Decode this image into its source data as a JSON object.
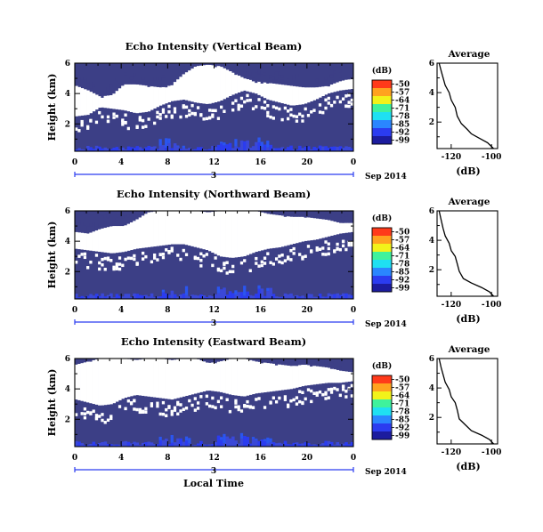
{
  "chart_data": [
    {
      "type": "heatmap",
      "title": "Echo Intensity (Vertical Beam)",
      "ylabel": "Height (km)",
      "x_ticks": [
        "0",
        "4",
        "8",
        "12",
        "16",
        "20",
        "0"
      ],
      "y_ticks": [
        "6",
        "4",
        "2"
      ],
      "day_label": "3",
      "date_label": "Sep 2014",
      "xlabel": "",
      "colorbar": {
        "unit": "(dB)",
        "levels": [
          "-50",
          "-57",
          "-64",
          "-71",
          "-78",
          "-85",
          "-92",
          "-99"
        ]
      },
      "average": {
        "title": "Average",
        "xlabel": "(dB)",
        "x_ticks": [
          "-120",
          "-100"
        ],
        "y_ticks": [
          "6",
          "4",
          "2"
        ],
        "xlim": [
          -127,
          -97
        ],
        "ylim": [
          0.2,
          6.0
        ],
        "profile": [
          [
            -99,
            0.2
          ],
          [
            -102,
            0.6
          ],
          [
            -106,
            0.9
          ],
          [
            -110,
            1.2
          ],
          [
            -112,
            1.5
          ],
          [
            -115,
            1.9
          ],
          [
            -117,
            2.4
          ],
          [
            -118,
            3.0
          ],
          [
            -120,
            3.5
          ],
          [
            -121,
            4.0
          ],
          [
            -123,
            4.5
          ],
          [
            -124,
            5.0
          ],
          [
            -125,
            5.5
          ],
          [
            -126,
            6.0
          ]
        ]
      }
    },
    {
      "type": "heatmap",
      "title": "Echo Intensity (Northward Beam)",
      "ylabel": "Height (km)",
      "x_ticks": [
        "0",
        "4",
        "8",
        "12",
        "16",
        "20",
        "0"
      ],
      "y_ticks": [
        "6",
        "4",
        "2"
      ],
      "day_label": "3",
      "date_label": "Sep 2014",
      "xlabel": "",
      "colorbar": {
        "unit": "(dB)",
        "levels": [
          "-50",
          "-57",
          "-64",
          "-71",
          "-78",
          "-85",
          "-92",
          "-99"
        ]
      },
      "average": {
        "title": "Average",
        "xlabel": "(dB)",
        "x_ticks": [
          "-120",
          "-100"
        ],
        "y_ticks": [
          "6",
          "4",
          "2"
        ],
        "xlim": [
          -127,
          -97
        ],
        "ylim": [
          0.2,
          6.0
        ],
        "profile": [
          [
            -99,
            0.2
          ],
          [
            -101,
            0.5
          ],
          [
            -105,
            0.8
          ],
          [
            -110,
            1.1
          ],
          [
            -114,
            1.4
          ],
          [
            -116,
            1.9
          ],
          [
            -117,
            2.4
          ],
          [
            -118,
            2.9
          ],
          [
            -120,
            3.3
          ],
          [
            -121,
            3.8
          ],
          [
            -123,
            4.3
          ],
          [
            -124,
            4.8
          ],
          [
            -125,
            5.4
          ],
          [
            -126,
            6.0
          ]
        ]
      }
    },
    {
      "type": "heatmap",
      "title": "Echo Intensity (Eastward Beam)",
      "ylabel": "Height (km)",
      "x_ticks": [
        "0",
        "4",
        "8",
        "12",
        "16",
        "20",
        "0"
      ],
      "y_ticks": [
        "6",
        "4",
        "2"
      ],
      "day_label": "3",
      "date_label": "Sep 2014",
      "xlabel": "Local Time",
      "colorbar": {
        "unit": "(dB)",
        "levels": [
          "-50",
          "-57",
          "-64",
          "-71",
          "-78",
          "-85",
          "-92",
          "-99"
        ]
      },
      "average": {
        "title": "Average",
        "xlabel": "(dB)",
        "x_ticks": [
          "-120",
          "-100"
        ],
        "y_ticks": [
          "6",
          "4",
          "2"
        ],
        "xlim": [
          -127,
          -97
        ],
        "ylim": [
          0.2,
          6.0
        ],
        "profile": [
          [
            -99,
            0.2
          ],
          [
            -101,
            0.5
          ],
          [
            -105,
            0.8
          ],
          [
            -110,
            1.1
          ],
          [
            -113,
            1.5
          ],
          [
            -116,
            1.9
          ],
          [
            -117,
            2.5
          ],
          [
            -118,
            3.0
          ],
          [
            -120,
            3.4
          ],
          [
            -121,
            3.9
          ],
          [
            -123,
            4.4
          ],
          [
            -124,
            4.9
          ],
          [
            -125,
            5.4
          ],
          [
            -126,
            6.0
          ]
        ]
      }
    }
  ]
}
